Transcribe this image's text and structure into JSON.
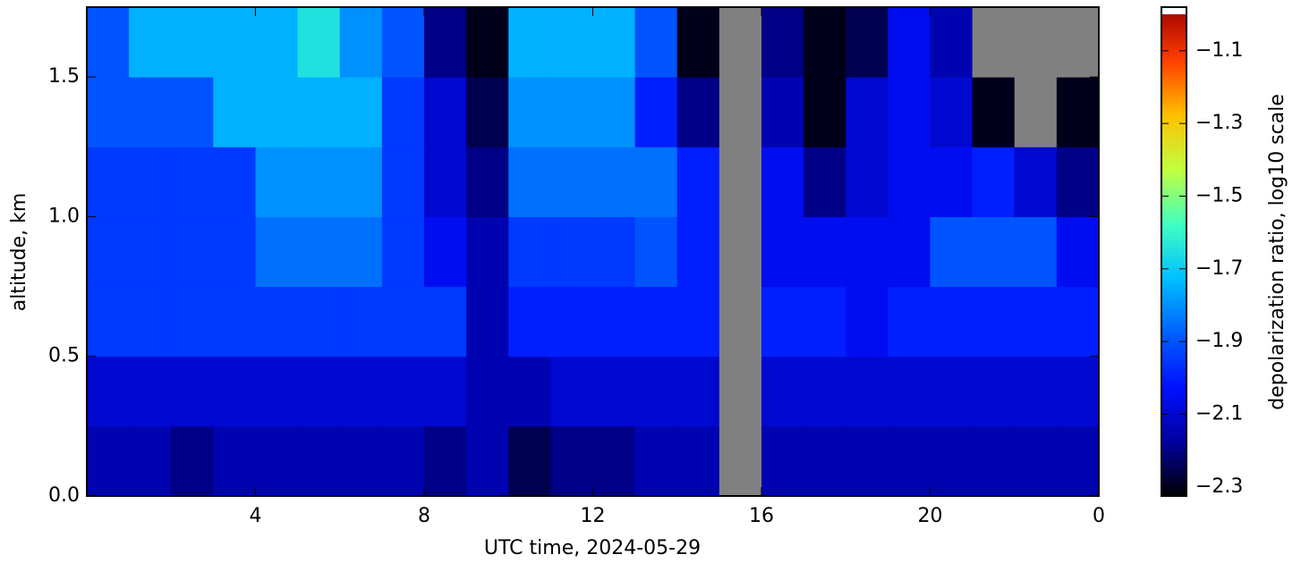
{
  "chart_data": {
    "type": "heatmap",
    "xlabel": "UTC time,  2024-05-29",
    "ylabel": "altitude, km",
    "colorbar_label": "depolarization ratio, log10 scale",
    "x_edges": [
      0,
      1,
      2,
      3,
      4,
      5,
      6,
      7,
      8,
      9,
      10,
      11,
      12,
      13,
      14,
      15,
      16,
      17,
      18,
      19,
      20,
      21,
      22,
      23,
      24
    ],
    "y_edges": [
      0,
      0.25,
      0.5,
      0.75,
      1.0,
      1.25,
      1.5,
      1.75
    ],
    "values": [
      [
        -2.15,
        -2.15,
        -2.2,
        -2.15,
        -2.15,
        -2.15,
        -2.15,
        -2.15,
        -2.2,
        -2.15,
        -2.25,
        -2.2,
        -2.2,
        -2.15,
        -2.15,
        null,
        -2.15,
        -2.15,
        -2.15,
        -2.15,
        -2.15,
        -2.15,
        -2.15,
        -2.15
      ],
      [
        -2.1,
        -2.1,
        -2.1,
        -2.1,
        -2.1,
        -2.1,
        -2.1,
        -2.1,
        -2.1,
        -2.15,
        -2.15,
        -2.1,
        -2.1,
        -2.1,
        -2.1,
        null,
        -2.1,
        -2.1,
        -2.1,
        -2.1,
        -2.1,
        -2.1,
        -2.1,
        -2.1
      ],
      [
        -1.95,
        -1.95,
        -1.95,
        -1.95,
        -1.95,
        -1.95,
        -1.95,
        -1.95,
        -1.95,
        -2.15,
        -2.0,
        -2.0,
        -2.0,
        -2.0,
        -2.0,
        null,
        -2.0,
        -2.0,
        -2.05,
        -2.0,
        -2.0,
        -2.0,
        -2.0,
        -2.0
      ],
      [
        -1.95,
        -1.95,
        -1.95,
        -1.95,
        -1.85,
        -1.85,
        -1.85,
        -1.95,
        -2.05,
        -2.15,
        -1.95,
        -1.95,
        -1.95,
        -1.9,
        -2.0,
        null,
        -2.05,
        -2.05,
        -2.05,
        -2.05,
        -1.9,
        -1.9,
        -1.9,
        -2.05
      ],
      [
        -1.95,
        -1.95,
        -1.95,
        -1.95,
        -1.8,
        -1.8,
        -1.8,
        -1.95,
        -2.1,
        -2.2,
        -1.85,
        -1.85,
        -1.85,
        -1.85,
        -2.0,
        null,
        -2.05,
        -2.2,
        -2.1,
        -2.05,
        -2.05,
        -2.0,
        -2.1,
        -2.2
      ],
      [
        -1.9,
        -1.9,
        -1.9,
        -1.75,
        -1.75,
        -1.75,
        -1.75,
        -1.95,
        -2.1,
        -2.25,
        -1.8,
        -1.8,
        -1.8,
        -2.0,
        -2.2,
        null,
        -2.15,
        -2.3,
        -2.1,
        -2.05,
        -2.1,
        -2.3,
        null,
        -2.3
      ],
      [
        -1.9,
        -1.75,
        -1.75,
        -1.75,
        -1.75,
        -1.65,
        -1.8,
        -1.9,
        -2.2,
        -2.3,
        -1.75,
        -1.75,
        -1.75,
        -1.9,
        -2.3,
        null,
        -2.2,
        -2.3,
        -2.25,
        -2.05,
        -2.15,
        null,
        null,
        null
      ]
    ],
    "xlim": [
      0,
      24
    ],
    "ylim": [
      0,
      1.75
    ],
    "xticks": [
      4,
      8,
      12,
      16,
      20,
      {
        "value": 24,
        "label": "0"
      }
    ],
    "yticks": [
      {
        "value": 0,
        "label": "0.0"
      },
      0.5,
      {
        "value": 1,
        "label": "1.0"
      },
      1.5
    ],
    "colorlim": [
      -2.325,
      -0.98
    ],
    "colorticks": [
      {
        "value": -1.1,
        "label": "−1.1"
      },
      {
        "value": -1.3,
        "label": "−1.3"
      },
      {
        "value": -1.5,
        "label": "−1.5"
      },
      {
        "value": -1.7,
        "label": "−1.7"
      },
      {
        "value": -1.9,
        "label": "−1.9"
      },
      {
        "value": -2.1,
        "label": "−2.1"
      },
      {
        "value": -2.3,
        "label": "−2.3"
      }
    ],
    "colormap": [
      "#000000",
      "#0000a0",
      "#0010ff",
      "#0060ff",
      "#00c0ff",
      "#40ffc0",
      "#c0ff40",
      "#ffc000",
      "#ff4000",
      "#a00000"
    ],
    "missing_color": "#808080",
    "over_color": "#ffffff"
  }
}
